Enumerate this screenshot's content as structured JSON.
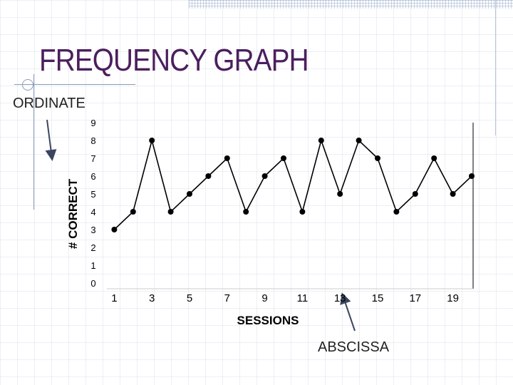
{
  "slide": {
    "title": "FREQUENCY GRAPH",
    "ordinate_label": "ORDINATE",
    "abscissa_label": "ABSCISSA"
  },
  "chart_data": {
    "type": "line",
    "x": [
      1,
      2,
      3,
      4,
      5,
      6,
      7,
      8,
      9,
      10,
      11,
      12,
      13,
      14,
      15,
      16,
      17,
      18,
      19,
      20
    ],
    "values": [
      3,
      4,
      8,
      4,
      5,
      6,
      7,
      4,
      6,
      7,
      4,
      8,
      5,
      8,
      7,
      4,
      5,
      7,
      5,
      6
    ],
    "xlabel": "SESSIONS",
    "ylabel": "# CORRECT",
    "ylim": [
      0,
      9
    ],
    "xlim": [
      0,
      20
    ],
    "y_ticks": [
      "0",
      "1",
      "2",
      "3",
      "4",
      "5",
      "6",
      "7",
      "8",
      "9"
    ],
    "x_ticks": [
      "1",
      "3",
      "5",
      "7",
      "9",
      "11",
      "13",
      "15",
      "17",
      "19"
    ],
    "grid": false,
    "colors": {
      "line": "#000000",
      "marker": "#000000",
      "title": "#4b1f5e"
    }
  }
}
